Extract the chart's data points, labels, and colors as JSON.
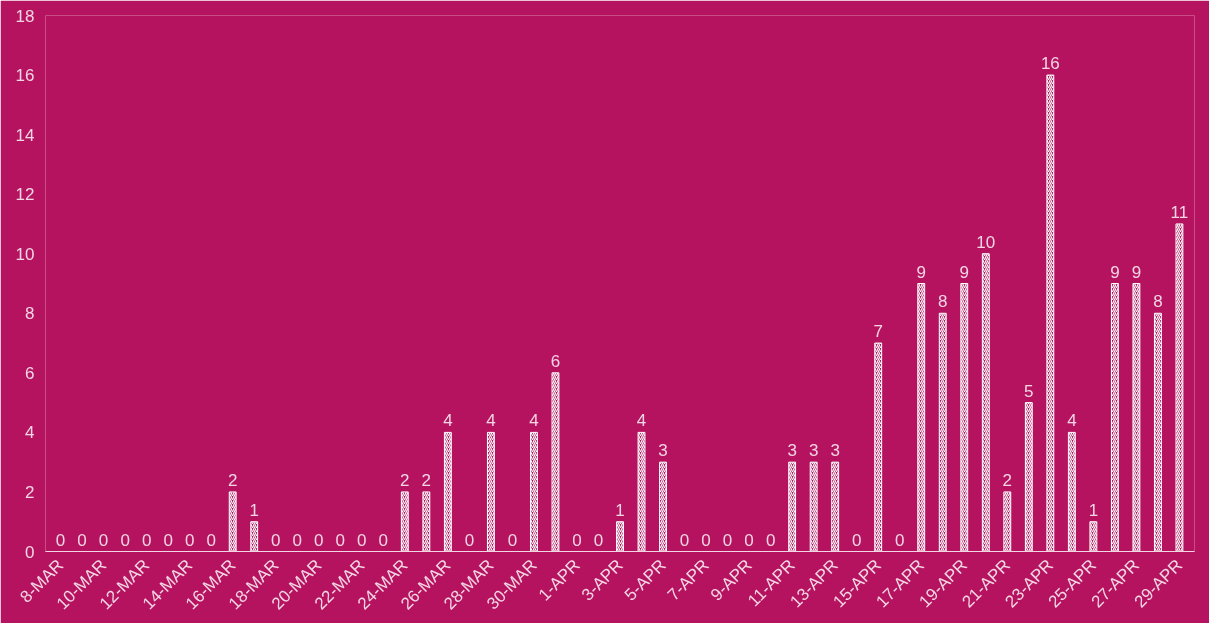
{
  "chart_data": {
    "type": "bar",
    "categories": [
      "8-MAR",
      null,
      "10-MAR",
      null,
      "12-MAR",
      null,
      "14-MAR",
      null,
      "16-MAR",
      null,
      "18-MAR",
      null,
      "20-MAR",
      null,
      "22-MAR",
      null,
      "24-MAR",
      null,
      "26-MAR",
      null,
      "28-MAR",
      null,
      "30-MAR",
      null,
      "1-APR",
      null,
      "3-APR",
      null,
      "5-APR",
      null,
      "7-APR",
      null,
      "9-APR",
      null,
      "11-APR",
      null,
      "13-APR",
      null,
      "15-APR",
      null,
      "17-APR",
      null,
      "19-APR",
      null,
      "21-APR",
      null,
      "23-APR",
      null,
      "25-APR",
      null,
      "27-APR",
      null,
      "29-APR"
    ],
    "values": [
      0,
      0,
      0,
      0,
      0,
      0,
      0,
      0,
      2,
      1,
      0,
      0,
      0,
      0,
      0,
      0,
      2,
      2,
      4,
      0,
      4,
      0,
      4,
      6,
      0,
      0,
      1,
      4,
      3,
      0,
      0,
      0,
      0,
      0,
      3,
      3,
      3,
      0,
      7,
      0,
      9,
      8,
      9,
      10,
      2,
      5,
      16,
      4,
      1,
      9,
      9,
      8,
      11
    ],
    "color": "#ffffff",
    "ylim": [
      0,
      18
    ],
    "yticks": [
      0,
      2,
      4,
      6,
      8,
      10,
      12,
      14,
      16,
      18
    ],
    "grid": false,
    "data_labels": true
  }
}
